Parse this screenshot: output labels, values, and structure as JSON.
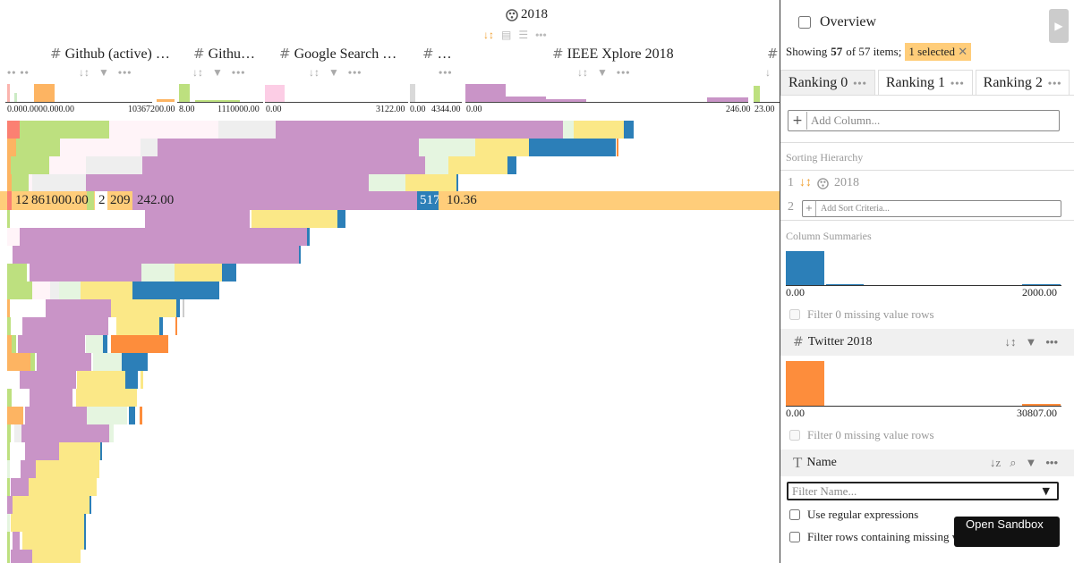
{
  "stack_header": {
    "title": "2018"
  },
  "columns": [
    {
      "label": "Github (active) …",
      "ticks": [
        "10367200.00"
      ]
    },
    {
      "label": "Githu…",
      "ticks": [
        "8.00",
        "1110000.00"
      ]
    },
    {
      "label": "Google Search …",
      "ticks": [
        "0.00",
        "3122.00"
      ]
    },
    {
      "label": "…",
      "ticks": [
        "0.00",
        "4344.00"
      ]
    },
    {
      "label": "IEEE Xplore 2018",
      "ticks": [
        "0.00",
        "246.00"
      ]
    },
    {
      "label": "",
      "ticks": [
        "23.00"
      ]
    }
  ],
  "left_ticks": [
    "0.00",
    "0.00",
    "00.00",
    "0.00"
  ],
  "selected_row": {
    "values": [
      "12",
      "861000.00",
      "2",
      "209",
      "242.00",
      "517",
      "10.36"
    ]
  },
  "panel": {
    "overview_label": "Overview",
    "showing_prefix": "Showing",
    "showing_count": "57",
    "showing_suffix": "of 57 items;",
    "selected_label": "1 selected",
    "tabs": [
      {
        "label": "Ranking 0"
      },
      {
        "label": "Ranking 1"
      },
      {
        "label": "Ranking 2"
      }
    ],
    "add_column_placeholder": "Add Column...",
    "sorting_hierarchy_label": "Sorting Hierarchy",
    "sort_items": [
      {
        "index": "1",
        "label": "2018"
      }
    ],
    "sort_add_index": "2",
    "add_sort_placeholder": "Add Sort Criteria...",
    "column_summaries_label": "Column Summaries",
    "summary1": {
      "min": "0.00",
      "max": "2000.00",
      "filter_missing": "Filter 0 missing value rows"
    },
    "twitter": {
      "label": "Twitter 2018",
      "min": "0.00",
      "max": "30807.00",
      "filter_missing": "Filter 0 missing value rows"
    },
    "name_column": {
      "label": "Name",
      "filter_placeholder": "Filter Name...",
      "regex_label": "Use regular expressions",
      "missing_label": "Filter rows containing missing values"
    },
    "sandbox_label": "Open Sandbox"
  },
  "colors": {
    "selection": "#ffcd7a",
    "purple": "#c994c7",
    "yellow": "#fbe887",
    "blue": "#2c7fb8",
    "green": "#bde07f",
    "orange": "#fd8d3c"
  }
}
